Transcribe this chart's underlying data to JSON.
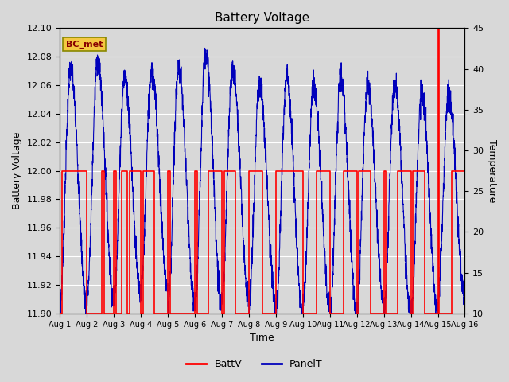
{
  "title": "Battery Voltage",
  "xlabel": "Time",
  "ylabel_left": "Battery Voltage",
  "ylabel_right": "Temperature",
  "ylim_left": [
    11.9,
    12.1
  ],
  "ylim_right": [
    10,
    45
  ],
  "xlim": [
    0,
    15
  ],
  "xtick_positions": [
    0,
    1,
    2,
    3,
    4,
    5,
    6,
    7,
    8,
    9,
    10,
    11,
    12,
    13,
    14,
    15
  ],
  "xtick_labels": [
    "Aug 1",
    "Aug 2",
    "Aug 3",
    "Aug 4",
    "Aug 5",
    "Aug 6",
    "Aug 7",
    "Aug 8",
    "Aug 9",
    "Aug 10",
    "Aug 11",
    "Aug 12",
    "Aug 13",
    "Aug 14",
    "Aug 15",
    "Aug 16"
  ],
  "annotation_text": "BC_met",
  "background_color": "#d8d8d8",
  "plot_bg_color": "#d8d8d8",
  "grid_color": "#ffffff",
  "battv_color": "#ff0000",
  "panelt_color": "#0000bb",
  "legend_entries": [
    "BattV",
    "PanelT"
  ],
  "legend_colors": [
    "#ff0000",
    "#0000bb"
  ],
  "yticks_left": [
    11.9,
    11.92,
    11.94,
    11.96,
    11.98,
    12.0,
    12.02,
    12.04,
    12.06,
    12.08,
    12.1
  ],
  "yticks_right": [
    10,
    15,
    20,
    25,
    30,
    35,
    40,
    45
  ],
  "panelt_peaks": [
    40,
    41,
    39,
    40,
    40,
    42,
    40,
    38,
    39,
    38,
    39,
    38,
    38,
    37,
    37,
    35
  ],
  "panelt_troughs": [
    11,
    12,
    12,
    13,
    11,
    11,
    12,
    11,
    10,
    11,
    10,
    11,
    10,
    10,
    12,
    11
  ]
}
